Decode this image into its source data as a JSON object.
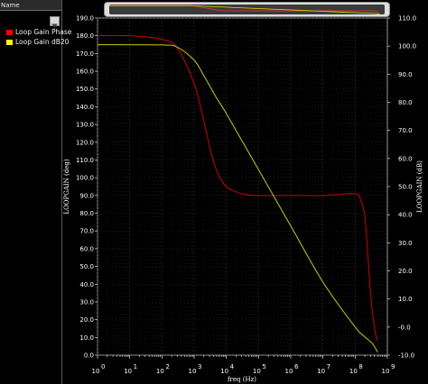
{
  "legend": {
    "header": "Name",
    "items": [
      {
        "label": "Loop Gain Phase",
        "color": "#ff0000"
      },
      {
        "label": "Loop Gain dB20",
        "color": "#ffff00"
      }
    ]
  },
  "chart_data": {
    "type": "line",
    "xlabel": "freq (Hz)",
    "ylabel_left": "LOOPGAIN (deg)",
    "ylabel_right": "LOOPGAIN (dB)",
    "xscale": "log",
    "xlim": [
      1,
      1000000000
    ],
    "ylim_left": [
      0,
      190
    ],
    "ylim_right": [
      -10,
      110
    ],
    "x_ticks": [
      {
        "label": "10",
        "exp": "0",
        "value": 1
      },
      {
        "label": "10",
        "exp": "1",
        "value": 10
      },
      {
        "label": "10",
        "exp": "2",
        "value": 100
      },
      {
        "label": "10",
        "exp": "3",
        "value": 1000
      },
      {
        "label": "10",
        "exp": "4",
        "value": 10000
      },
      {
        "label": "10",
        "exp": "5",
        "value": 100000
      },
      {
        "label": "10",
        "exp": "6",
        "value": 1000000
      },
      {
        "label": "10",
        "exp": "7",
        "value": 10000000
      },
      {
        "label": "10",
        "exp": "8",
        "value": 100000000
      },
      {
        "label": "10",
        "exp": "9",
        "value": 1000000000
      }
    ],
    "y_ticks_left": [
      "0.0",
      "10.0",
      "20.0",
      "30.0",
      "40.0",
      "50.0",
      "60.0",
      "70.0",
      "80.0",
      "90.0",
      "100.0",
      "110.0",
      "120.0",
      "130.0",
      "140.0",
      "150.0",
      "160.0",
      "170.0",
      "180.0",
      "190.0"
    ],
    "y_ticks_right": [
      "-10.0",
      "-0.0",
      "10.0",
      "20.0",
      "30.0",
      "40.0",
      "50.0",
      "60.0",
      "70.0",
      "80.0",
      "90.0",
      "100.0",
      "110.0"
    ],
    "grid": true,
    "series": [
      {
        "name": "Loop Gain Phase",
        "axis": "left",
        "color": "#cc0000",
        "x": [
          1,
          10,
          100,
          300,
          1000,
          2000,
          3000,
          5000,
          10000,
          30000,
          100000,
          1000000,
          10000000,
          100000000,
          150000000,
          200000000,
          250000000,
          300000000,
          400000000,
          500000000
        ],
        "y": [
          180,
          180,
          178,
          173,
          153,
          132,
          118,
          104,
          95,
          91,
          90,
          90,
          90,
          91,
          87,
          78,
          55,
          35,
          15,
          8
        ]
      },
      {
        "name": "Loop Gain dB20",
        "axis": "right",
        "color": "#cccc00",
        "x": [
          1,
          100,
          300,
          1000,
          2000,
          5000,
          10000,
          100000,
          1000000,
          10000000,
          100000000,
          200000000,
          350000000,
          500000000
        ],
        "y": [
          100.5,
          100.4,
          99.6,
          95,
          89.5,
          81.5,
          76,
          56,
          36,
          16,
          0,
          -3.5,
          -6,
          -9
        ]
      }
    ]
  }
}
